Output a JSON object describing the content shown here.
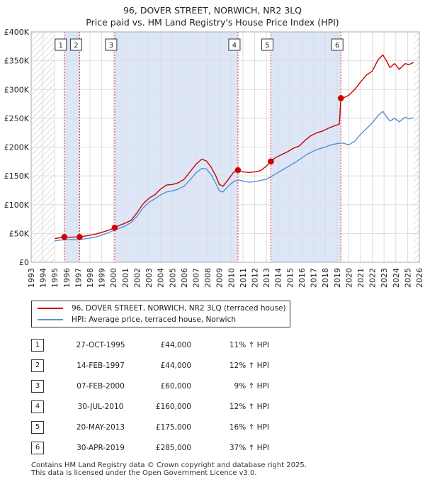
{
  "title": "96, DOVER STREET, NORWICH, NR2 3LQ",
  "subtitle": "Price paid vs. HM Land Registry's House Price Index (HPI)",
  "chart_data": {
    "type": "line",
    "title": "96, DOVER STREET, NORWICH, NR2 3LQ",
    "subtitle": "Price paid vs. HM Land Registry's House Price Index (HPI)",
    "xlim": [
      1993,
      2026
    ],
    "ylim": [
      0,
      400000
    ],
    "x_ticks": [
      "1993",
      "1994",
      "1995",
      "1996",
      "1997",
      "1998",
      "1999",
      "2000",
      "2001",
      "2002",
      "2003",
      "2004",
      "2005",
      "2006",
      "2007",
      "2008",
      "2009",
      "2010",
      "2011",
      "2012",
      "2013",
      "2014",
      "2015",
      "2016",
      "2017",
      "2018",
      "2019",
      "2020",
      "2021",
      "2022",
      "2023",
      "2024",
      "2025",
      "2026"
    ],
    "y_ticks": [
      {
        "value": 0,
        "label": "£0"
      },
      {
        "value": 50000,
        "label": "£50K"
      },
      {
        "value": 100000,
        "label": "£100K"
      },
      {
        "value": 150000,
        "label": "£150K"
      },
      {
        "value": 200000,
        "label": "£200K"
      },
      {
        "value": 250000,
        "label": "£250K"
      },
      {
        "value": 300000,
        "label": "£300K"
      },
      {
        "value": 350000,
        "label": "£350K"
      },
      {
        "value": 400000,
        "label": "£400K"
      }
    ],
    "hatched_ranges": [
      [
        1993,
        1995.0
      ],
      [
        2025.5,
        2026
      ]
    ],
    "shaded_ranges": [
      [
        1995.82,
        1997.12
      ],
      [
        2000.1,
        2010.58
      ],
      [
        2013.38,
        2019.33
      ]
    ],
    "series": [
      {
        "name": "96, DOVER STREET, NORWICH, NR2 3LQ (terraced house)",
        "color": "#cc0000",
        "points": [
          [
            1995.0,
            41000
          ],
          [
            1995.4,
            42500
          ],
          [
            1995.82,
            44000
          ],
          [
            1996.2,
            43500
          ],
          [
            1996.6,
            43800
          ],
          [
            1997.12,
            44000
          ],
          [
            1997.6,
            45500
          ],
          [
            1998.0,
            47000
          ],
          [
            1998.5,
            49000
          ],
          [
            1999.0,
            52000
          ],
          [
            1999.5,
            55000
          ],
          [
            2000.1,
            60000
          ],
          [
            2000.5,
            64000
          ],
          [
            2001.0,
            68000
          ],
          [
            2001.5,
            73000
          ],
          [
            2002.0,
            86000
          ],
          [
            2002.5,
            101000
          ],
          [
            2003.0,
            111000
          ],
          [
            2003.5,
            117000
          ],
          [
            2004.0,
            127000
          ],
          [
            2004.5,
            134000
          ],
          [
            2005.0,
            135000
          ],
          [
            2005.5,
            138000
          ],
          [
            2006.0,
            144000
          ],
          [
            2006.5,
            157000
          ],
          [
            2007.0,
            170000
          ],
          [
            2007.5,
            179000
          ],
          [
            2007.9,
            176000
          ],
          [
            2008.3,
            165000
          ],
          [
            2008.7,
            150000
          ],
          [
            2009.0,
            135000
          ],
          [
            2009.3,
            132000
          ],
          [
            2009.7,
            142000
          ],
          [
            2010.2,
            156000
          ],
          [
            2010.58,
            160000
          ],
          [
            2011.0,
            157000
          ],
          [
            2011.5,
            156000
          ],
          [
            2012.0,
            157000
          ],
          [
            2012.5,
            159000
          ],
          [
            2013.0,
            167000
          ],
          [
            2013.38,
            175000
          ],
          [
            2013.8,
            182000
          ],
          [
            2014.3,
            187000
          ],
          [
            2014.8,
            192000
          ],
          [
            2015.3,
            198000
          ],
          [
            2015.8,
            202000
          ],
          [
            2016.3,
            212000
          ],
          [
            2016.8,
            220000
          ],
          [
            2017.3,
            225000
          ],
          [
            2017.8,
            228000
          ],
          [
            2018.3,
            233000
          ],
          [
            2018.8,
            237000
          ],
          [
            2019.2,
            240000
          ],
          [
            2019.33,
            285000
          ],
          [
            2019.6,
            286000
          ],
          [
            2020.0,
            290000
          ],
          [
            2020.5,
            300000
          ],
          [
            2021.0,
            313000
          ],
          [
            2021.5,
            325000
          ],
          [
            2022.0,
            332000
          ],
          [
            2022.5,
            352000
          ],
          [
            2022.9,
            360000
          ],
          [
            2023.2,
            350000
          ],
          [
            2023.5,
            338000
          ],
          [
            2023.9,
            345000
          ],
          [
            2024.3,
            335000
          ],
          [
            2024.8,
            345000
          ],
          [
            2025.1,
            343000
          ],
          [
            2025.5,
            347000
          ]
        ]
      },
      {
        "name": "HPI: Average price, terraced house, Norwich",
        "color": "#5a8fd0",
        "points": [
          [
            1995.0,
            37000
          ],
          [
            1995.5,
            38500
          ],
          [
            1996.0,
            39000
          ],
          [
            1996.5,
            39500
          ],
          [
            1997.0,
            39000
          ],
          [
            1997.5,
            40500
          ],
          [
            1998.0,
            42000
          ],
          [
            1998.5,
            44000
          ],
          [
            1999.0,
            47000
          ],
          [
            1999.5,
            51000
          ],
          [
            2000.0,
            55000
          ],
          [
            2000.5,
            59000
          ],
          [
            2001.0,
            63000
          ],
          [
            2001.5,
            69000
          ],
          [
            2002.0,
            80000
          ],
          [
            2002.5,
            94000
          ],
          [
            2003.0,
            104000
          ],
          [
            2003.5,
            110000
          ],
          [
            2004.0,
            117000
          ],
          [
            2004.5,
            122000
          ],
          [
            2005.0,
            124000
          ],
          [
            2005.5,
            127000
          ],
          [
            2006.0,
            132000
          ],
          [
            2006.5,
            143000
          ],
          [
            2007.0,
            155000
          ],
          [
            2007.5,
            163000
          ],
          [
            2007.9,
            162000
          ],
          [
            2008.3,
            152000
          ],
          [
            2008.7,
            137000
          ],
          [
            2009.0,
            124000
          ],
          [
            2009.3,
            122000
          ],
          [
            2009.7,
            131000
          ],
          [
            2010.2,
            140000
          ],
          [
            2010.6,
            143000
          ],
          [
            2011.0,
            141000
          ],
          [
            2011.5,
            139000
          ],
          [
            2012.0,
            140000
          ],
          [
            2012.5,
            142000
          ],
          [
            2013.0,
            144000
          ],
          [
            2013.5,
            150000
          ],
          [
            2014.0,
            156000
          ],
          [
            2014.5,
            162000
          ],
          [
            2015.0,
            168000
          ],
          [
            2015.5,
            174000
          ],
          [
            2016.0,
            181000
          ],
          [
            2016.5,
            188000
          ],
          [
            2017.0,
            193000
          ],
          [
            2017.5,
            197000
          ],
          [
            2018.0,
            200000
          ],
          [
            2018.5,
            204000
          ],
          [
            2019.0,
            206000
          ],
          [
            2019.5,
            207000
          ],
          [
            2020.0,
            204000
          ],
          [
            2020.5,
            210000
          ],
          [
            2021.0,
            222000
          ],
          [
            2021.5,
            232000
          ],
          [
            2022.0,
            242000
          ],
          [
            2022.5,
            255000
          ],
          [
            2022.9,
            262000
          ],
          [
            2023.2,
            253000
          ],
          [
            2023.5,
            245000
          ],
          [
            2023.9,
            250000
          ],
          [
            2024.3,
            244000
          ],
          [
            2024.8,
            252000
          ],
          [
            2025.1,
            249000
          ],
          [
            2025.5,
            251000
          ]
        ]
      }
    ],
    "sales": [
      {
        "num": "1",
        "x": 1995.82,
        "value": 44000
      },
      {
        "num": "2",
        "x": 1997.12,
        "value": 44000
      },
      {
        "num": "3",
        "x": 2000.1,
        "value": 60000
      },
      {
        "num": "4",
        "x": 2010.58,
        "value": 160000
      },
      {
        "num": "5",
        "x": 2013.38,
        "value": 175000
      },
      {
        "num": "6",
        "x": 2019.33,
        "value": 285000
      }
    ],
    "colors": {
      "price_line": "#cc0000",
      "hpi_line": "#5a8fd0",
      "shade": "#dce6f7",
      "marker_line": "#dd3333"
    }
  },
  "legend": {
    "price_label": "96, DOVER STREET, NORWICH, NR2 3LQ (terraced house)",
    "hpi_label": "HPI: Average price, terraced house, Norwich"
  },
  "table": [
    {
      "num": "1",
      "date": "27-OCT-1995",
      "price": "£44,000",
      "hpi": "11% ↑ HPI"
    },
    {
      "num": "2",
      "date": "14-FEB-1997",
      "price": "£44,000",
      "hpi": "12% ↑ HPI"
    },
    {
      "num": "3",
      "date": "07-FEB-2000",
      "price": "£60,000",
      "hpi": "9% ↑ HPI"
    },
    {
      "num": "4",
      "date": "30-JUL-2010",
      "price": "£160,000",
      "hpi": "12% ↑ HPI"
    },
    {
      "num": "5",
      "date": "20-MAY-2013",
      "price": "£175,000",
      "hpi": "16% ↑ HPI"
    },
    {
      "num": "6",
      "date": "30-APR-2019",
      "price": "£285,000",
      "hpi": "37% ↑ HPI"
    }
  ],
  "footer": {
    "line1": "Contains HM Land Registry data © Crown copyright and database right 2025.",
    "line2": "This data is licensed under the Open Government Licence v3.0."
  }
}
